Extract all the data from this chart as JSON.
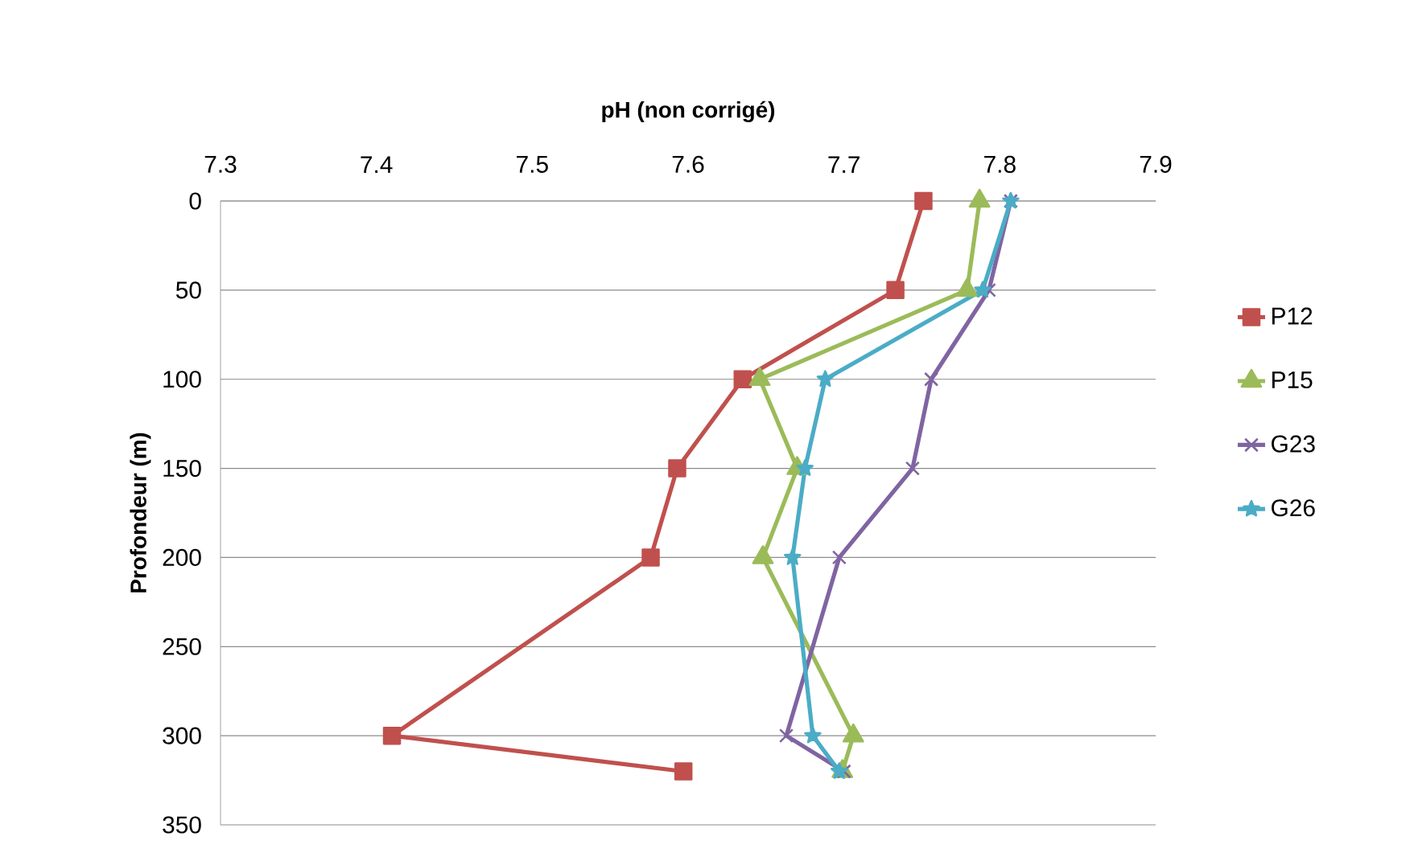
{
  "chart_data": {
    "type": "line",
    "xlabel": "pH (non corrigé)",
    "ylabel": "Profondeur (m)",
    "xlim": [
      7.3,
      7.9
    ],
    "xticks": [
      {
        "value": 7.3,
        "label": "7.3"
      },
      {
        "value": 7.4,
        "label": "7.4"
      },
      {
        "value": 7.5,
        "label": "7.5"
      },
      {
        "value": 7.6,
        "label": "7.6"
      },
      {
        "value": 7.7,
        "label": "7.7"
      },
      {
        "value": 7.8,
        "label": "7.8"
      },
      {
        "value": 7.9,
        "label": "7.9"
      }
    ],
    "ylim": [
      350,
      0
    ],
    "yticks": [
      0,
      50,
      100,
      150,
      200,
      250,
      300,
      350
    ],
    "grid": "y",
    "legend": "right",
    "series": [
      {
        "name": "P12",
        "color": "#c0504d",
        "marker": "square",
        "x": [
          7.751,
          7.733,
          7.635,
          7.593,
          7.576,
          7.41,
          7.597
        ],
        "values": [
          0,
          50,
          100,
          150,
          200,
          300,
          320
        ]
      },
      {
        "name": "P15",
        "color": "#9bbb59",
        "marker": "triangle",
        "x": [
          7.787,
          7.779,
          7.646,
          7.67,
          7.648,
          7.706,
          7.699
        ],
        "values": [
          0,
          50,
          100,
          150,
          200,
          300,
          320
        ]
      },
      {
        "name": "G23",
        "color": "#8064a2",
        "marker": "cross",
        "x": [
          7.807,
          7.793,
          7.756,
          7.744,
          7.697,
          7.663,
          7.7
        ],
        "values": [
          0,
          50,
          100,
          150,
          200,
          300,
          320
        ]
      },
      {
        "name": "G26",
        "color": "#4bacc6",
        "marker": "star",
        "x": [
          7.807,
          7.789,
          7.688,
          7.675,
          7.667,
          7.68,
          7.697
        ],
        "values": [
          0,
          50,
          100,
          150,
          200,
          300,
          320
        ]
      }
    ]
  }
}
